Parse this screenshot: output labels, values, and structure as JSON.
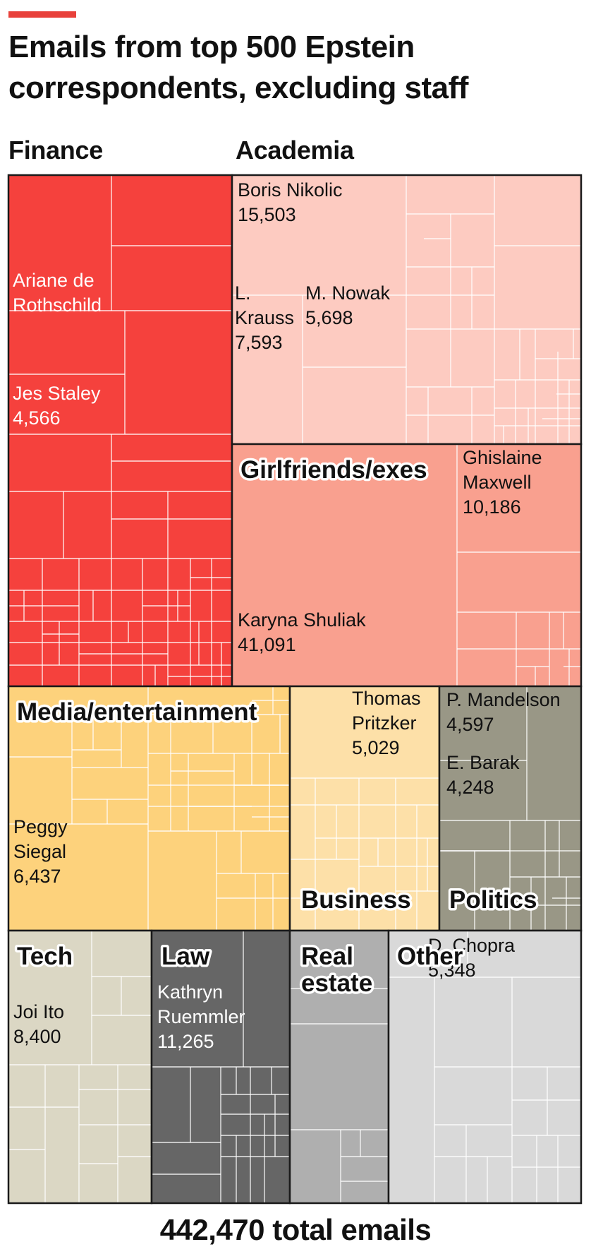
{
  "title": "Emails from top 500 Epstein correspondents, excluding staff",
  "total_label": "442,470 total emails",
  "colors": {
    "accent": "#e8413b",
    "Finance": "#f5413d",
    "Academia": "#fdcbc1",
    "Girlfriends/exes": "#f9a08f",
    "Media/entertainment": "#fdd27c",
    "Business": "#fde0a8",
    "Politics": "#999786",
    "Tech": "#dbd7c4",
    "Law": "#666666",
    "Real estate": "#afafaf",
    "Other": "#d9d9d9"
  },
  "chart_data": {
    "type": "treemap",
    "title": "Emails from top 500 Epstein correspondents, excluding staff",
    "total": 442470,
    "categories": [
      {
        "name": "Finance",
        "label": "Finance",
        "highlighted": [
          {
            "name": "Ariane de Rothschild",
            "label": [
              "Ariane de",
              "Rothschild"
            ],
            "value": null
          },
          {
            "name": "Jes Staley",
            "label": [
              "Jes Staley",
              "4,566"
            ],
            "value": 4566
          }
        ]
      },
      {
        "name": "Academia",
        "label": "Academia",
        "highlighted": [
          {
            "name": "Boris Nikolic",
            "label": [
              "Boris Nikolic",
              "15,503"
            ],
            "value": 15503
          },
          {
            "name": "L. Krauss",
            "label": [
              "L.",
              "Krauss",
              "7,593"
            ],
            "value": 7593
          },
          {
            "name": "M. Nowak",
            "label": [
              "M. Nowak",
              "5,698"
            ],
            "value": 5698
          }
        ]
      },
      {
        "name": "Girlfriends/exes",
        "label": "Girlfriends/exes",
        "highlighted": [
          {
            "name": "Ghislaine Maxwell",
            "label": [
              "Ghislaine",
              "Maxwell",
              "10,186"
            ],
            "value": 10186
          },
          {
            "name": "Karyna Shuliak",
            "label": [
              "Karyna Shuliak",
              "41,091"
            ],
            "value": 41091
          }
        ]
      },
      {
        "name": "Media/entertainment",
        "label": "Media/entertainment",
        "highlighted": [
          {
            "name": "Peggy Siegal",
            "label": [
              "Peggy",
              "Siegal",
              "6,437"
            ],
            "value": 6437
          }
        ]
      },
      {
        "name": "Business",
        "label": "Business",
        "highlighted": [
          {
            "name": "Thomas Pritzker",
            "label": [
              "Thomas",
              "Pritzker",
              "5,029"
            ],
            "value": 5029
          }
        ]
      },
      {
        "name": "Politics",
        "label": "Politics",
        "highlighted": [
          {
            "name": "P. Mandelson",
            "label": [
              "P. Mandelson",
              "4,597"
            ],
            "value": 4597
          },
          {
            "name": "E. Barak",
            "label": [
              "E. Barak",
              "4,248"
            ],
            "value": 4248
          }
        ]
      },
      {
        "name": "Tech",
        "label": "Tech",
        "highlighted": [
          {
            "name": "Joi Ito",
            "label": [
              "Joi Ito",
              "8,400"
            ],
            "value": 8400
          }
        ]
      },
      {
        "name": "Law",
        "label": "Law",
        "highlighted": [
          {
            "name": "Kathryn Ruemmler",
            "label": [
              "Kathryn",
              "Ruemmler",
              "11,265"
            ],
            "value": 11265
          }
        ]
      },
      {
        "name": "Real estate",
        "label": "Real\nestate",
        "highlighted": []
      },
      {
        "name": "Other",
        "label": "Other",
        "highlighted": [
          {
            "name": "D. Chopra",
            "label": [
              "D. Chopra",
              "5,348"
            ],
            "value": 5348
          }
        ]
      }
    ]
  }
}
